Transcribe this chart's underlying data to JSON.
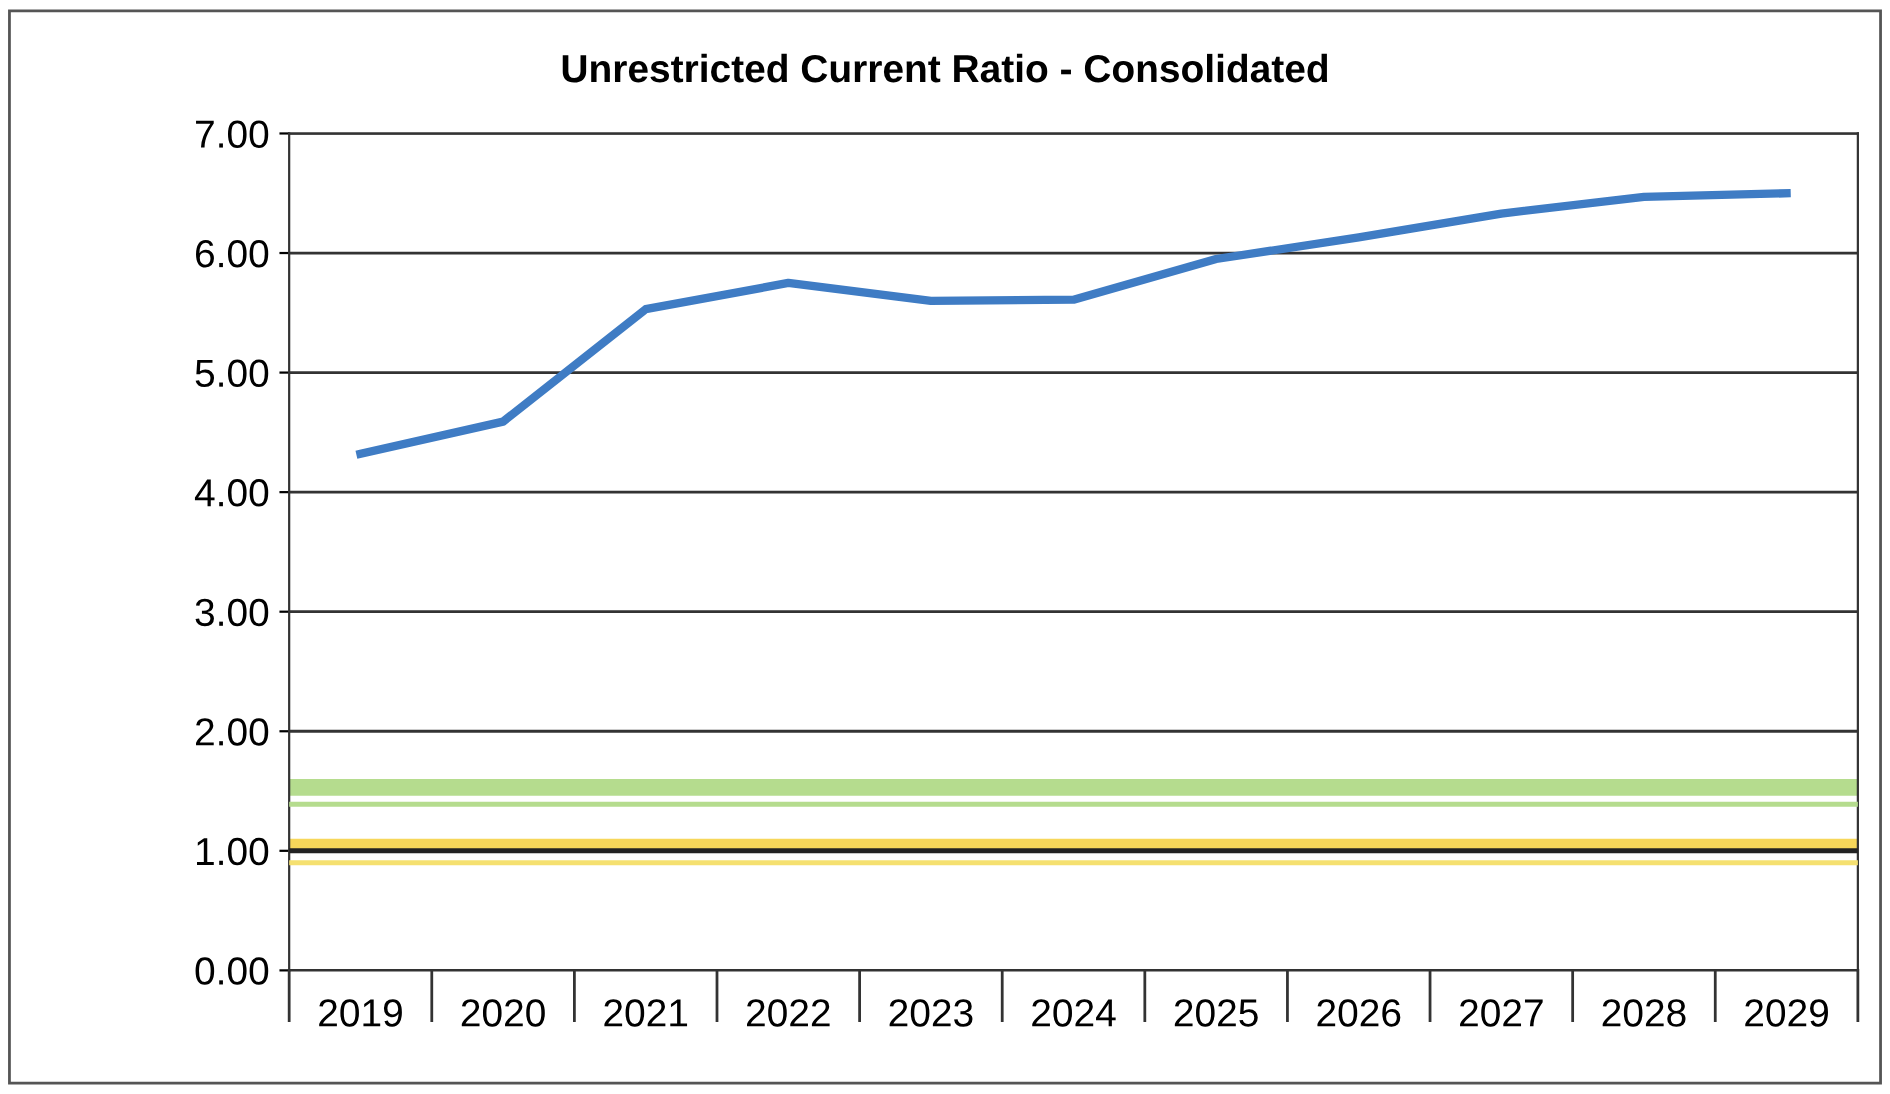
{
  "chart_data": {
    "type": "line",
    "title": "Unrestricted Current Ratio - Consolidated",
    "categories": [
      "2019",
      "2020",
      "2021",
      "2022",
      "2023",
      "2024",
      "2025",
      "2026",
      "2027",
      "2028",
      "2029"
    ],
    "series": [
      {
        "color": "#3f7cc4",
        "values": [
          4.32,
          4.59,
          5.53,
          5.75,
          5.6,
          5.61,
          5.95,
          6.13,
          6.33,
          6.47,
          6.5
        ]
      }
    ],
    "ylim": [
      0,
      7
    ],
    "yticks": [
      {
        "value": 0,
        "label": "0.00"
      },
      {
        "value": 1,
        "label": "1.00"
      },
      {
        "value": 2,
        "label": "2.00"
      },
      {
        "value": 3,
        "label": "3.00"
      },
      {
        "value": 4,
        "label": "4.00"
      },
      {
        "value": 5,
        "label": "5.00"
      },
      {
        "value": 6,
        "label": "6.00"
      },
      {
        "value": 7,
        "label": "7.00"
      }
    ],
    "grid": "y",
    "marker": "none",
    "line_style": "solid",
    "bands": [
      {
        "axis": "y",
        "from": 1.46,
        "to": 1.6,
        "color": "#b5dc8e"
      },
      {
        "axis": "y",
        "from": 1.0,
        "to": 1.1,
        "color": "#f7d75a"
      }
    ],
    "ref_lines": [
      {
        "axis": "y",
        "value": 1.39,
        "color": "#b5dc8e",
        "line_style": "solid"
      },
      {
        "axis": "y",
        "value": 0.9,
        "color": "#f5e070",
        "line_style": "solid"
      },
      {
        "axis": "y",
        "value": 1.0,
        "color": "#222222",
        "line_style": "solid"
      }
    ]
  }
}
